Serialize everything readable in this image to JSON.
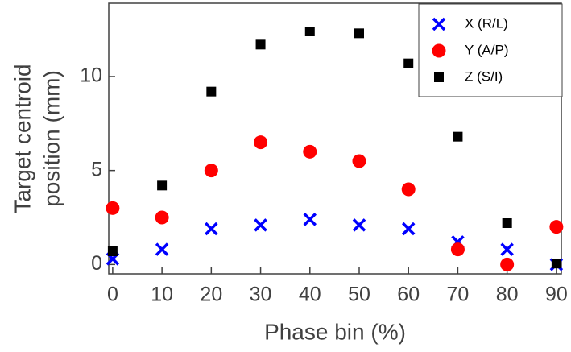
{
  "chart_data": {
    "type": "scatter",
    "xlabel": "Phase bin (%)",
    "ylabel": [
      "Target centroid",
      "position (mm)"
    ],
    "x": [
      0,
      10,
      20,
      30,
      40,
      50,
      60,
      70,
      80,
      90
    ],
    "series": [
      {
        "name": "X (R/L)",
        "color": "#0000ff",
        "marker": "cross",
        "values": [
          0.3,
          0.8,
          1.9,
          2.1,
          2.4,
          2.1,
          1.9,
          1.2,
          0.8,
          0.0
        ]
      },
      {
        "name": "Y (A/P)",
        "color": "#ff0000",
        "marker": "circle",
        "values": [
          3.0,
          2.5,
          5.0,
          6.5,
          6.0,
          5.5,
          4.0,
          0.8,
          0.0,
          2.0
        ]
      },
      {
        "name": "Z (S/I)",
        "color": "#000000",
        "marker": "square",
        "values": [
          0.7,
          4.2,
          9.2,
          11.7,
          12.4,
          12.3,
          10.7,
          6.8,
          2.2,
          0.05
        ]
      }
    ],
    "xlim": [
      -0.8,
      91
    ],
    "ylim": [
      -0.5,
      13.9
    ],
    "xticks": [
      0,
      10,
      20,
      30,
      40,
      50,
      60,
      70,
      80,
      90
    ],
    "yticks": [
      0,
      5,
      10
    ],
    "grid": false,
    "legend": "upper right"
  }
}
